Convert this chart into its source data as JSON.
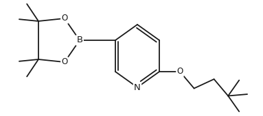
{
  "background": "#ffffff",
  "line_color": "#1a1a1a",
  "lw": 1.3,
  "fs": 8.5,
  "fig_w": 3.83,
  "fig_h": 1.7,
  "xlim": [
    0,
    383
  ],
  "ylim": [
    0,
    170
  ],
  "bonds": [],
  "atoms": []
}
